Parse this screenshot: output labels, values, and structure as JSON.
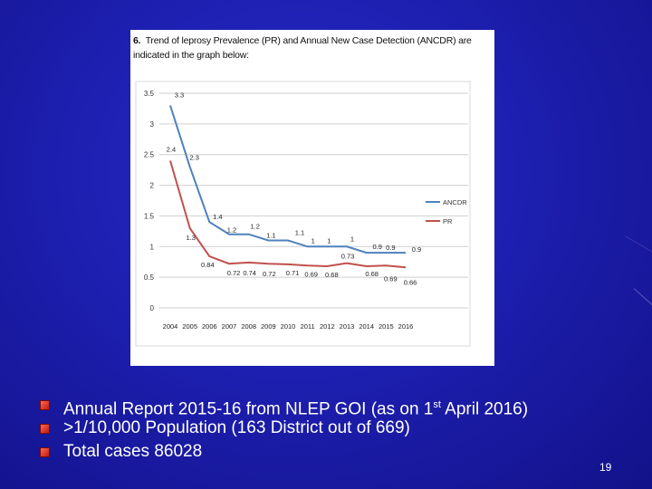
{
  "slide": {
    "page_number": "19",
    "bullets": [
      {
        "pre": "Annual Report 2015-16 from NLEP GOI (as on 1",
        "sup": "st",
        "post": " April 2016)"
      },
      {
        "pre": ">1/10,000 Population (163 District out of 669)",
        "sup": "",
        "post": ""
      },
      {
        "pre": "Total cases 86028",
        "sup": "",
        "post": ""
      }
    ],
    "colors": {
      "bullet": "#d8291a",
      "text": "#ffffff"
    }
  },
  "figure": {
    "number": "6.",
    "caption": "Trend of leprosy Prevalence (PR) and Annual New Case Detection (ANCDR) are indicated in the graph below:"
  },
  "chart_data": {
    "type": "line",
    "title": "",
    "xlabel": "",
    "ylabel": "",
    "x": [
      "2004",
      "2005",
      "2006",
      "2007",
      "2008",
      "2009",
      "2010",
      "2011",
      "2012",
      "2013",
      "2014",
      "2015",
      "2016"
    ],
    "ylim": [
      0,
      3.5
    ],
    "yticks": [
      "0",
      "0.5",
      "1",
      "1.5",
      "2",
      "2.5",
      "3",
      "3.5"
    ],
    "grid": true,
    "legend_position": "right",
    "series": [
      {
        "name": "ANCDR",
        "color": "#4f81bd",
        "values": [
          3.3,
          2.3,
          1.4,
          1.2,
          1.2,
          1.1,
          1.1,
          1,
          1,
          1,
          0.9,
          0.9,
          0.9
        ],
        "labels": [
          "3.3",
          "2.3",
          "1.4",
          "1.2",
          "1.2",
          "1.1",
          "1.1",
          "1",
          "1",
          "1",
          "0.9",
          "0.9",
          "0.9"
        ]
      },
      {
        "name": "PR",
        "color": "#c0504d",
        "values": [
          2.4,
          1.3,
          0.84,
          0.72,
          0.74,
          0.72,
          0.71,
          0.69,
          0.68,
          0.73,
          0.68,
          0.69,
          0.66
        ],
        "labels": [
          "2.4",
          "1.3",
          "0.84",
          "0.72",
          "0.74",
          "0.72",
          "0.71",
          "0.69",
          "0.68",
          "0.73",
          "0.68",
          "0.69",
          "0.66"
        ]
      }
    ]
  }
}
